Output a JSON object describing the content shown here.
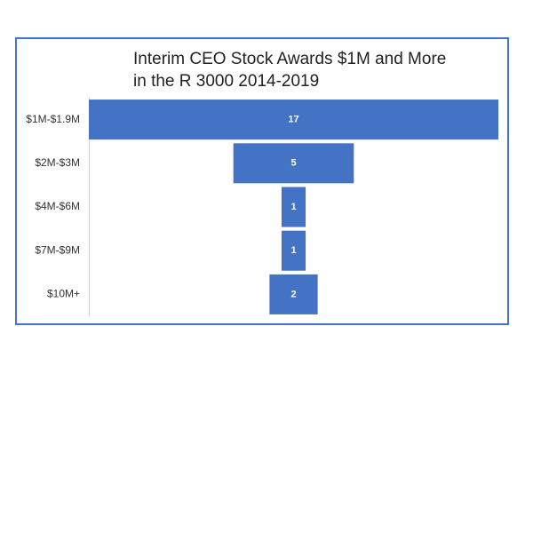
{
  "chart_data": {
    "type": "funnel",
    "title": "Interim CEO Stock Awards $1M and More in the R 3000 2014-2019",
    "categories": [
      "$1M-$1.9M",
      "$2M-$3M",
      "$4M-$6M",
      "$7M-$9M",
      "$10M+"
    ],
    "values": [
      17,
      5,
      1,
      1,
      2
    ],
    "color": "#4472c4"
  }
}
